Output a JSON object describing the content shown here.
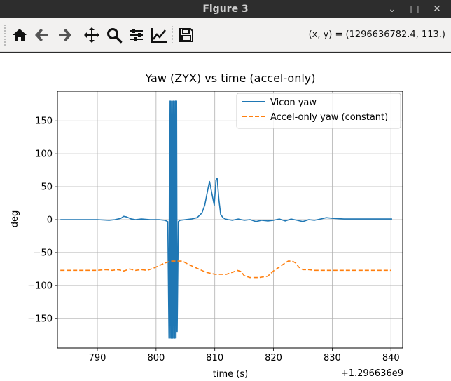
{
  "window": {
    "title": "Figure 3",
    "minimize_label": "⌄",
    "maximize_label": "□",
    "close_label": "✕"
  },
  "toolbar": {
    "buttons": [
      {
        "name": "home-button",
        "icon": "home-icon"
      },
      {
        "name": "back-button",
        "icon": "arrow-left-icon"
      },
      {
        "name": "forward-button",
        "icon": "arrow-right-icon"
      },
      {
        "name": "pan-button",
        "icon": "move-icon"
      },
      {
        "name": "zoom-button",
        "icon": "magnifier-icon"
      },
      {
        "name": "subplots-button",
        "icon": "sliders-icon"
      },
      {
        "name": "edit-axes-button",
        "icon": "line-chart-icon"
      },
      {
        "name": "save-button",
        "icon": "floppy-icon"
      }
    ],
    "coords": "(x, y) = (1296636782.4, 113.)"
  },
  "chart_data": {
    "type": "line",
    "title": "Yaw (ZYX) vs time (accel-only)",
    "xlabel": "time (s)",
    "ylabel": "deg",
    "offset_text": "+1.296636e9",
    "xlim": [
      783.2,
      842.0
    ],
    "ylim": [
      -195,
      195
    ],
    "xticks": [
      790,
      800,
      810,
      820,
      830,
      840
    ],
    "yticks": [
      -150,
      -100,
      -50,
      0,
      50,
      100,
      150
    ],
    "grid": true,
    "legend_position": "upper right",
    "series": [
      {
        "name": "Vicon yaw",
        "color": "#1f77b4",
        "style": "solid",
        "x": [
          783.7,
          790.0,
          792.0,
          793.0,
          794.0,
          794.5,
          795.0,
          795.8,
          796.5,
          797.5,
          799.0,
          800.5,
          801.5,
          802.0,
          802.2,
          802.3,
          802.4,
          802.5,
          802.6,
          802.7,
          802.8,
          802.9,
          803.0,
          803.1,
          803.2,
          803.3,
          803.4,
          803.5,
          803.6,
          803.8,
          804.1,
          805.0,
          806.0,
          807.0,
          807.8,
          808.3,
          808.8,
          809.1,
          809.5,
          809.9,
          810.2,
          810.4,
          810.7,
          811.0,
          811.4,
          811.8,
          812.3,
          813.0,
          814.0,
          815.0,
          816.0,
          817.0,
          818.0,
          819.0,
          820.0,
          821.0,
          822.0,
          823.0,
          824.0,
          825.0,
          826.0,
          827.0,
          828.0,
          829.0,
          830.0,
          832.0,
          835.0,
          838.0,
          840.2
        ],
        "y": [
          0,
          0,
          -1,
          0,
          2,
          5,
          4,
          1,
          0,
          1,
          0,
          0,
          -1,
          -3,
          -180,
          180,
          -180,
          180,
          -180,
          180,
          -180,
          180,
          -180,
          180,
          -180,
          180,
          -180,
          180,
          -170,
          -3,
          -1,
          0,
          1,
          3,
          10,
          22,
          45,
          58,
          40,
          22,
          60,
          63,
          30,
          8,
          3,
          1,
          0,
          -1,
          1,
          -1,
          0,
          -3,
          -1,
          -2,
          -1,
          1,
          -2,
          1,
          -1,
          -3,
          0,
          -1,
          1,
          3,
          2,
          1,
          1,
          1,
          1
        ]
      },
      {
        "name": "Accel-only yaw (constant)",
        "color": "#ff7f0e",
        "style": "dashed",
        "x": [
          783.7,
          790.0,
          791.5,
          792.5,
          793.5,
          794.5,
          795.5,
          796.5,
          797.5,
          798.5,
          799.5,
          800.5,
          801.5,
          802.5,
          803.5,
          804.5,
          805.5,
          806.5,
          807.5,
          808.5,
          810.0,
          812.0,
          813.0,
          813.8,
          814.5,
          815.0,
          816.0,
          817.5,
          819.0,
          820.0,
          821.0,
          821.8,
          822.5,
          823.2,
          823.8,
          824.3,
          825.0,
          826.0,
          827.0,
          829.0,
          832.0,
          835.0,
          840.0
        ],
        "y": [
          -77,
          -77,
          -76,
          -77,
          -76,
          -78,
          -75,
          -77,
          -76,
          -77,
          -74,
          -70,
          -66,
          -63,
          -63,
          -63,
          -68,
          -72,
          -76,
          -80,
          -83,
          -83,
          -80,
          -77,
          -79,
          -85,
          -88,
          -88,
          -86,
          -78,
          -72,
          -67,
          -63,
          -63,
          -66,
          -72,
          -76,
          -76,
          -77,
          -77,
          -77,
          -77,
          -77
        ]
      }
    ]
  }
}
